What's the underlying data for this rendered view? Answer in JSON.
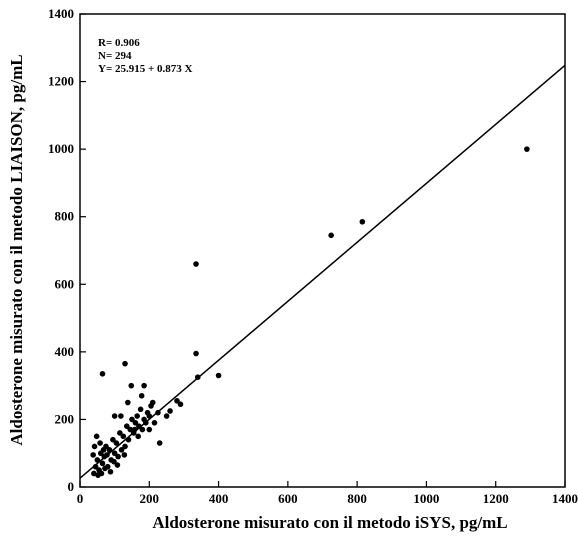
{
  "chart_data": {
    "type": "scatter",
    "annotations": [
      "R= 0.906",
      "N= 294",
      "Y= 25.915 + 0.873 X"
    ],
    "xlabel": "Aldosterone misurato con il metodo iSYS, pg/mL",
    "ylabel": "Aldosterone misurato con il metodo LIAISON, pg/mL",
    "xlim": [
      0,
      1400
    ],
    "ylim": [
      0,
      1400
    ],
    "xticks": [
      0,
      200,
      400,
      600,
      800,
      1000,
      1200,
      1400
    ],
    "yticks": [
      0,
      200,
      400,
      600,
      800,
      1000,
      1200,
      1400
    ],
    "series": [
      {
        "color": "#000000",
        "x": [
          40,
          45,
          50,
          55,
          60,
          65,
          70,
          75,
          80,
          85,
          90,
          95,
          100,
          105,
          110,
          115,
          120,
          125,
          130,
          135,
          140,
          145,
          150,
          155,
          160,
          165,
          170,
          175,
          180,
          185,
          190,
          195,
          200,
          205,
          210,
          215,
          38,
          42,
          48,
          52,
          58,
          62,
          68,
          72,
          78,
          88,
          98,
          108,
          118,
          128,
          138,
          148,
          158,
          168,
          178,
          250,
          260,
          200,
          185,
          100,
          1290,
          815,
          725,
          335,
          335,
          340,
          400,
          130,
          65,
          290,
          280,
          230,
          225
        ],
        "values": [
          40,
          60,
          80,
          50,
          100,
          70,
          90,
          120,
          60,
          110,
          80,
          140,
          100,
          130,
          90,
          160,
          110,
          150,
          120,
          180,
          140,
          170,
          200,
          160,
          190,
          210,
          180,
          230,
          170,
          200,
          190,
          220,
          210,
          240,
          250,
          190,
          95,
          120,
          150,
          35,
          130,
          40,
          110,
          55,
          95,
          45,
          75,
          65,
          210,
          95,
          250,
          300,
          170,
          150,
          270,
          210,
          225,
          170,
          300,
          210,
          1000,
          785,
          745,
          660,
          395,
          325,
          330,
          365,
          335,
          245,
          255,
          130,
          220
        ]
      }
    ],
    "trend_line": {
      "x": [
        0,
        1400
      ],
      "y": [
        26,
        1248
      ]
    }
  }
}
